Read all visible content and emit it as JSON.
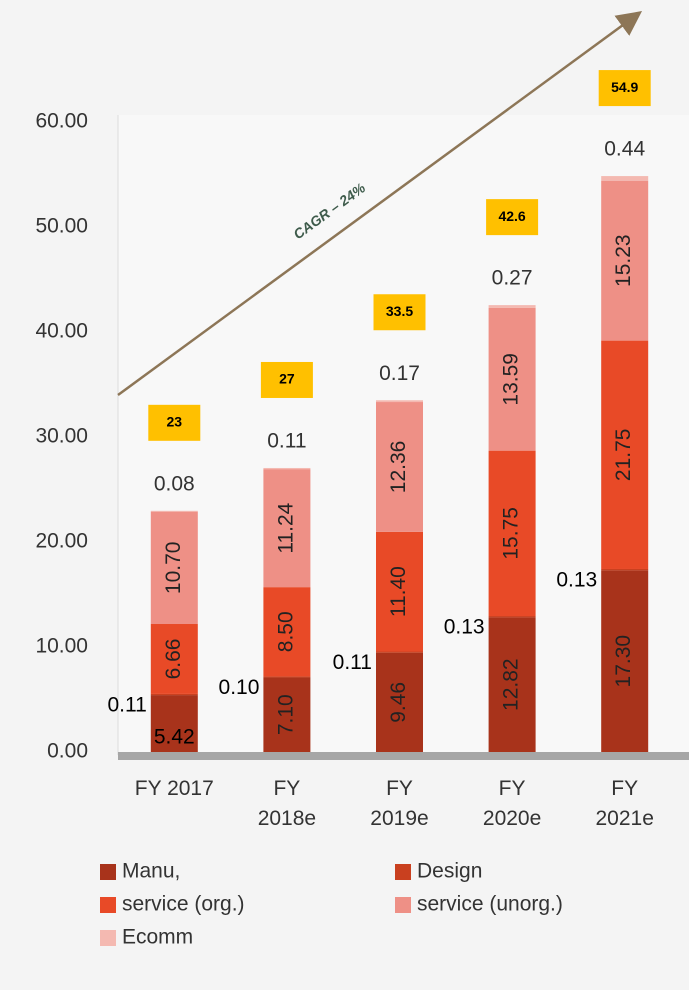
{
  "chart_data": {
    "type": "stacked_bar",
    "categories": [
      "FY 2017",
      "FY 2018e",
      "FY 2019e",
      "FY 2020e",
      "FY 2021e"
    ],
    "series": [
      {
        "name": "Manu,",
        "color": "#a8331b",
        "values": [
          5.42,
          7.1,
          9.46,
          12.82,
          17.3
        ],
        "value_labels": [
          "5.42",
          "7.10",
          "9.46",
          "12.82",
          "17.30"
        ]
      },
      {
        "name": "Design",
        "color": "#c9401f",
        "values": [
          0.11,
          0.1,
          0.11,
          0.13,
          0.13
        ],
        "value_labels": [
          "0.11",
          "0.10",
          "0.11",
          "0.13",
          "0.13"
        ]
      },
      {
        "name": "service (org.)",
        "color": "#e84a27",
        "values": [
          6.66,
          8.5,
          11.4,
          15.75,
          21.75
        ],
        "value_labels": [
          "6.66",
          "8.50",
          "11.40",
          "15.75",
          "21.75"
        ]
      },
      {
        "name": "service (unorg.)",
        "color": "#ee9086",
        "values": [
          10.7,
          11.24,
          12.36,
          13.59,
          15.23
        ],
        "value_labels": [
          "10.70",
          "11.24",
          "12.36",
          "13.59",
          "15.23"
        ]
      },
      {
        "name": "Ecomm",
        "color": "#f4b9b1",
        "values": [
          0.08,
          0.11,
          0.17,
          0.27,
          0.44
        ],
        "value_labels": [
          "0.08",
          "0.11",
          "0.17",
          "0.27",
          "0.44"
        ]
      }
    ],
    "totals": [
      23,
      27,
      33.5,
      42.6,
      54.9
    ],
    "annotation": "CAGR – 24%",
    "ylim": [
      0,
      60
    ],
    "yticks": [
      {
        "value": 0,
        "label": "0.00"
      },
      {
        "value": 10,
        "label": "10.00"
      },
      {
        "value": 20,
        "label": "20.00"
      },
      {
        "value": 30,
        "label": "30.00"
      },
      {
        "value": 40,
        "label": "40.00"
      },
      {
        "value": 50,
        "label": "50.00"
      },
      {
        "value": 60,
        "label": "60.00"
      }
    ],
    "legend": "bottom"
  }
}
